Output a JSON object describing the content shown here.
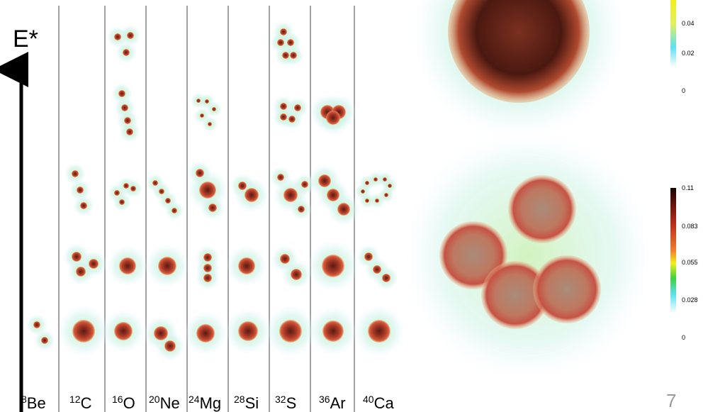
{
  "axis_label": "E*",
  "nuclei": [
    {
      "mass": "8",
      "symbol": "Be"
    },
    {
      "mass": "12",
      "symbol": "C"
    },
    {
      "mass": "16",
      "symbol": "O"
    },
    {
      "mass": "20",
      "symbol": "Ne"
    },
    {
      "mass": "24",
      "symbol": "Mg"
    },
    {
      "mass": "28",
      "symbol": "Si"
    },
    {
      "mass": "32",
      "symbol": "S"
    },
    {
      "mass": "36",
      "symbol": "Ar"
    },
    {
      "mass": "40",
      "symbol": "Ca"
    }
  ],
  "colorbar_top": {
    "labels": [
      "0.04",
      "0.02",
      "0"
    ]
  },
  "colorbar_bottom": {
    "labels": [
      "0.11",
      "0.083",
      "0.055",
      "0.028",
      "0"
    ]
  },
  "page_number": "7"
}
